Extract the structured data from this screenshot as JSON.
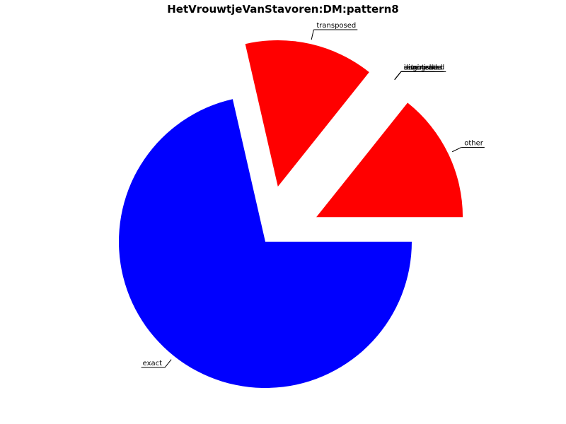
{
  "chart_data": {
    "type": "pie",
    "title": "HetVrouwtjeVanStavoren:DM:pattern8",
    "categories": [
      "other",
      "inverted",
      "retrograde",
      "augmented",
      "diminished",
      "transposed",
      "exact"
    ],
    "values": [
      14.29,
      0,
      0,
      0,
      0,
      14.29,
      71.43
    ],
    "colors": [
      "#ff0000",
      "#ff0000",
      "#ff0000",
      "#ff0000",
      "#ff0000",
      "#ff0000",
      "#0000ff"
    ]
  }
}
